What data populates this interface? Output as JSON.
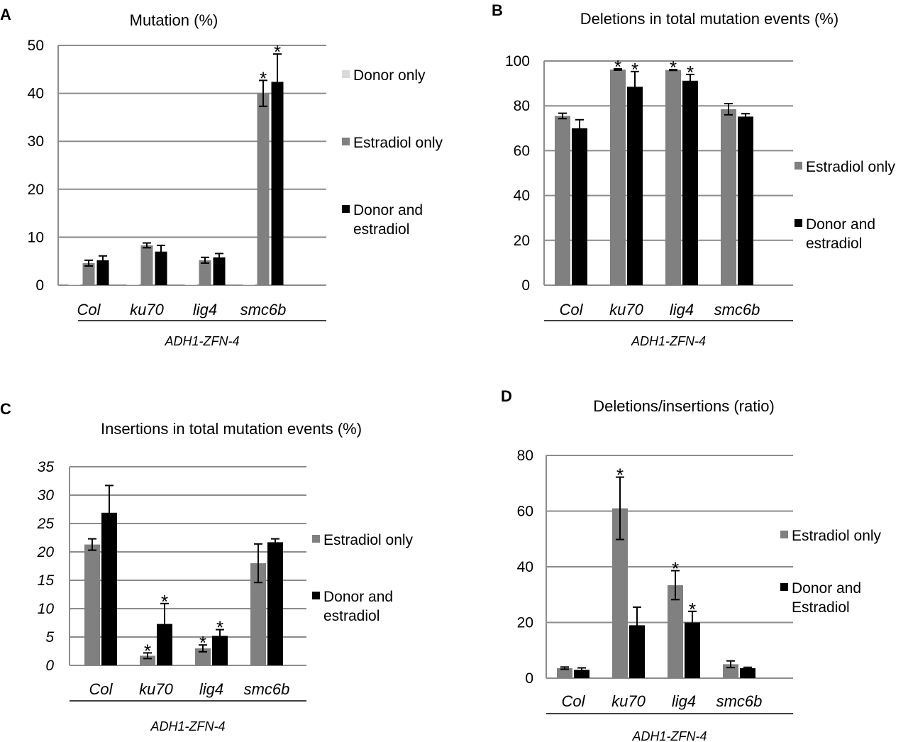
{
  "chart_data": [
    {
      "panel": "A",
      "type": "bar",
      "title": "Mutation (%)",
      "xlabel": "ADH1-ZFN-4",
      "ylabel": "",
      "ylim": [
        0,
        50
      ],
      "yticks": [
        "0",
        "10",
        "20",
        "30",
        "40",
        "50"
      ],
      "yticks_italic": false,
      "grid": true,
      "legend_position": "right",
      "categories": [
        "Col",
        "ku70",
        "lig4",
        "smc6b"
      ],
      "series": [
        {
          "name": "Donor only",
          "color": "#d9d9d9",
          "values": [
            0.1,
            0.1,
            0.1,
            0.1
          ],
          "errors": [
            0,
            0,
            0,
            0
          ],
          "stars": [
            false,
            false,
            false,
            false
          ]
        },
        {
          "name": "Estradiol only",
          "color": "#808080",
          "values": [
            4.6,
            8.3,
            5.2,
            40.0
          ],
          "errors": [
            0.6,
            0.5,
            0.6,
            2.7
          ],
          "stars": [
            false,
            false,
            false,
            true
          ]
        },
        {
          "name": "Donor and estradiol",
          "color": "#000000",
          "values": [
            5.2,
            7.0,
            5.8,
            42.4
          ],
          "errors": [
            0.9,
            1.3,
            0.8,
            5.8
          ],
          "stars": [
            false,
            false,
            false,
            true
          ]
        }
      ]
    },
    {
      "panel": "B",
      "type": "bar",
      "title": "Deletions in total mutation events (%)",
      "xlabel": "ADH1-ZFN-4",
      "ylabel": "",
      "ylim": [
        0,
        100
      ],
      "yticks": [
        "0",
        "20",
        "40",
        "60",
        "80",
        "100"
      ],
      "yticks_italic": false,
      "grid": true,
      "legend_position": "right",
      "categories": [
        "Col",
        "ku70",
        "lig4",
        "smc6b"
      ],
      "series": [
        {
          "name": "Estradiol only",
          "color": "#808080",
          "values": [
            75.5,
            96.2,
            96.0,
            78.5
          ],
          "errors": [
            1.2,
            0.3,
            0.2,
            2.5
          ],
          "stars": [
            false,
            true,
            true,
            false
          ]
        },
        {
          "name": "Donor and estradiol",
          "color": "#000000",
          "values": [
            70.0,
            88.5,
            91.2,
            75.2
          ],
          "errors": [
            3.8,
            6.8,
            2.8,
            1.3
          ],
          "stars": [
            false,
            true,
            true,
            false
          ]
        }
      ]
    },
    {
      "panel": "C",
      "type": "bar",
      "title": "Insertions in total mutation events (%)",
      "xlabel": "ADH1-ZFN-4",
      "ylabel": "",
      "ylim": [
        0,
        35
      ],
      "yticks": [
        "0",
        "5",
        "10",
        "15",
        "20",
        "25",
        "30",
        "35"
      ],
      "yticks_italic": true,
      "grid": true,
      "legend_position": "right",
      "categories": [
        "Col",
        "ku70",
        "lig4",
        "smc6b"
      ],
      "series": [
        {
          "name": "Estradiol only",
          "color": "#808080",
          "values": [
            21.3,
            1.7,
            3.0,
            18.0
          ],
          "errors": [
            1.0,
            0.5,
            0.6,
            3.4
          ],
          "stars": [
            false,
            true,
            true,
            false
          ]
        },
        {
          "name": "Donor and estradiol",
          "color": "#000000",
          "values": [
            26.9,
            7.3,
            5.2,
            21.7
          ],
          "errors": [
            4.8,
            3.6,
            1.1,
            0.6
          ],
          "stars": [
            false,
            true,
            true,
            false
          ]
        }
      ]
    },
    {
      "panel": "D",
      "type": "bar",
      "title": "Deletions/insertions (ratio)",
      "xlabel": "ADH1-ZFN-4",
      "ylabel": "",
      "ylim": [
        0,
        80
      ],
      "yticks": [
        "0",
        "20",
        "40",
        "60",
        "80"
      ],
      "yticks_italic": false,
      "grid": true,
      "legend_position": "right",
      "categories": [
        "Col",
        "ku70",
        "lig4",
        "smc6b"
      ],
      "series": [
        {
          "name": "Estradiol only",
          "color": "#808080",
          "values": [
            3.6,
            61.0,
            33.4,
            5.0
          ],
          "errors": [
            0.4,
            11.2,
            5.2,
            1.2
          ],
          "stars": [
            false,
            true,
            true,
            false
          ]
        },
        {
          "name": "Donor and Estradiol",
          "color": "#000000",
          "values": [
            3.0,
            19.0,
            20.0,
            3.6
          ],
          "errors": [
            0.7,
            6.5,
            4.0,
            0.3
          ],
          "stars": [
            false,
            false,
            true,
            false
          ]
        }
      ]
    }
  ]
}
